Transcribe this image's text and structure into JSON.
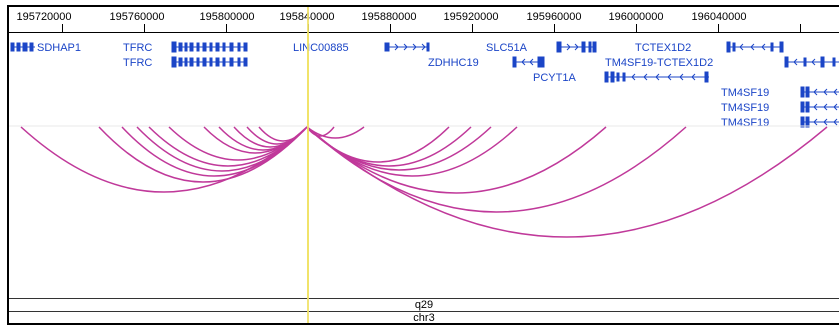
{
  "ruler": {
    "ticks": [
      "195720000",
      "195760000",
      "195800000",
      "195840000",
      "195880000",
      "195920000",
      "195960000",
      "196000000",
      "196040000"
    ]
  },
  "genes": {
    "sdhap1": "SDHAP1",
    "tfrc_1": "TFRC",
    "tfrc_2": "TFRC",
    "linc00885": "LINC00885",
    "slc51a": "SLC51A",
    "zdhhc19": "ZDHHC19",
    "pcyt1a": "PCYT1A",
    "tctex1d2": "TCTEX1D2",
    "tm4sf19_tctex1d2": "TM4SF19-TCTEX1D2",
    "tm4sf19_1": "TM4SF19",
    "tm4sf19_2": "TM4SF19",
    "tm4sf19_3": "TM4SF19"
  },
  "ideogram": {
    "band": "q29",
    "chromosome": "chr3"
  },
  "colors": {
    "gene": "#1b45c7",
    "arc": "#c0399a",
    "highlight": "#ffff66",
    "highlight_line": "#f1e26a"
  },
  "icons": {
    "arrow_right": "strand-forward-icon",
    "arrow_left": "strand-reverse-icon"
  }
}
